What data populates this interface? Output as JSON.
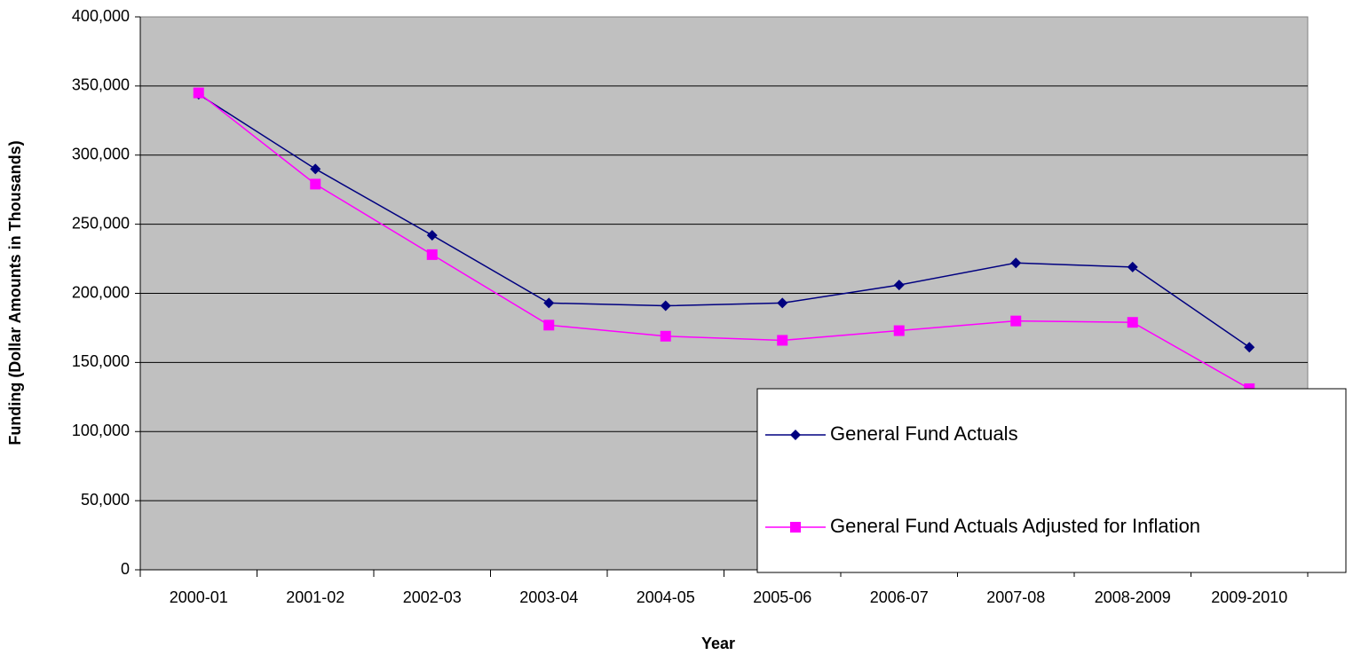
{
  "chart_data": {
    "type": "line",
    "x_label": "Year",
    "y_label": "Funding (Dollar Amounts in Thousands)",
    "categories": [
      "2000-01",
      "2001-02",
      "2002-03",
      "2003-04",
      "2004-05",
      "2005-06",
      "2006-07",
      "2007-08",
      "2008-2009",
      "2009-2010"
    ],
    "series": [
      {
        "name": "General Fund Actuals",
        "color": "#000080",
        "marker": "diamond",
        "values": [
          344000,
          290000,
          242000,
          193000,
          191000,
          193000,
          206000,
          222000,
          219000,
          161000
        ]
      },
      {
        "name": "General Fund Actuals Adjusted for Inflation",
        "color": "#ff00ff",
        "marker": "square",
        "values": [
          345000,
          279000,
          228000,
          177000,
          169000,
          166000,
          173000,
          180000,
          179000,
          131000
        ]
      }
    ],
    "ylim": [
      0,
      400000
    ],
    "yticks": [
      0,
      {
        "value": 50000,
        "label": "50,000"
      },
      {
        "value": 100000,
        "label": "100,000"
      },
      {
        "value": 150000,
        "label": "150,000"
      },
      {
        "value": 200000,
        "label": "200,000"
      },
      {
        "value": 250000,
        "label": "250,000"
      },
      {
        "value": 300000,
        "label": "300,000"
      },
      {
        "value": 350000,
        "label": "350,000"
      },
      {
        "value": 400000,
        "label": "400,000"
      }
    ],
    "grid": true,
    "legend": "lower right"
  }
}
